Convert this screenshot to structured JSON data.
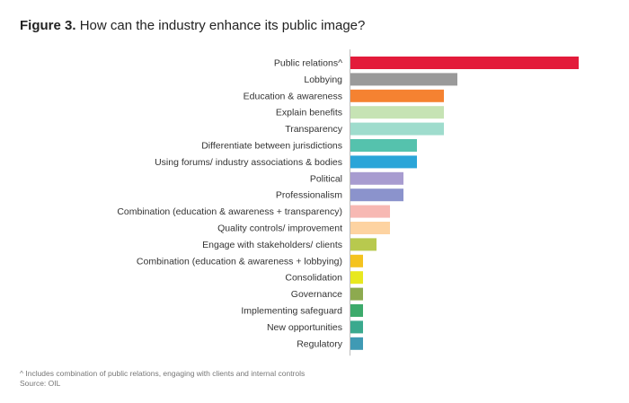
{
  "figure": {
    "label": "Figure 3.",
    "title": "How can the industry enhance its public image?"
  },
  "chart_data": {
    "type": "bar",
    "orientation": "horizontal",
    "categories": [
      "Public relations^",
      "Lobbying",
      "Education & awareness",
      "Explain benefits",
      "Transparency",
      "Differentiate between jurisdictions",
      "Using forums/ industry associations & bodies",
      "Political",
      "Professionalism",
      "Combination (education & awareness + transparency)",
      "Quality controls/ improvement",
      "Engage with stakeholders/ clients",
      "Combination (education & awareness + lobbying)",
      "Consolidation",
      "Governance",
      "Implementing safeguard",
      "New opportunities",
      "Regulatory"
    ],
    "values": [
      17,
      8,
      7,
      7,
      7,
      5,
      5,
      4,
      4,
      3,
      3,
      2,
      1,
      1,
      1,
      1,
      1,
      1
    ],
    "colors": [
      "#e31b3a",
      "#9a9a9a",
      "#f58231",
      "#c6e3b4",
      "#9fdccd",
      "#55c2ad",
      "#2aa5d8",
      "#a89cd0",
      "#8b93cc",
      "#f7b8b3",
      "#fdd3a1",
      "#b8c94e",
      "#f4c31f",
      "#e8e81f",
      "#8daa4f",
      "#3daa6b",
      "#3aa98e",
      "#3f9ab4"
    ],
    "xlim": [
      0,
      17
    ],
    "grid": false,
    "legend": "none"
  },
  "footnote": {
    "note": "^ Includes combination of public relations, engaging with clients and internal controls",
    "source": "Source: OIL"
  }
}
